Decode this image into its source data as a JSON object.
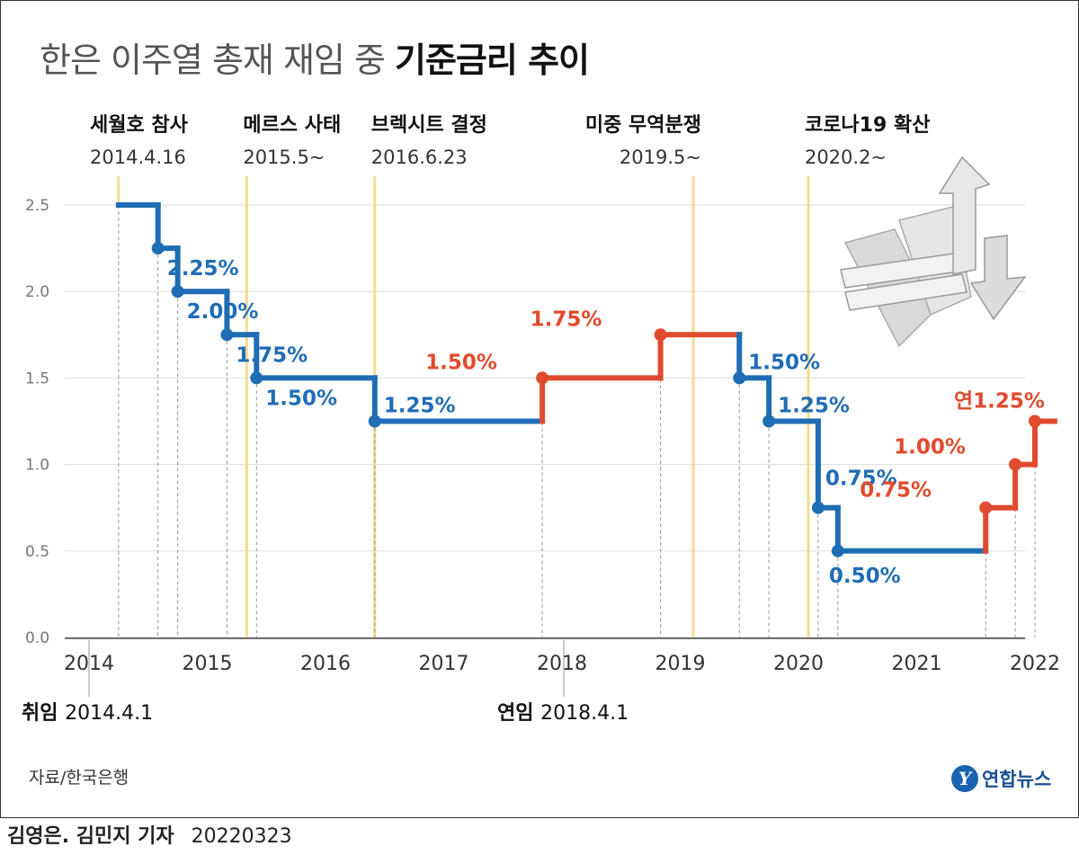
{
  "title": {
    "light": "한은 이주열 총재 재임 중",
    "bold": "기준금리 추이"
  },
  "source": "자료/한국은행",
  "credit": {
    "names": "김영은. 김민지 기자",
    "date": "20220323"
  },
  "logo": {
    "mark": "Y",
    "text": "연합뉴스"
  },
  "colors": {
    "cut": "#1f6db5",
    "hike": "#e04b2d",
    "event": "#f5dc8c",
    "grid": "#cccccc"
  },
  "chart_data": {
    "type": "line",
    "step": true,
    "ylim": [
      0,
      2.6
    ],
    "xlim": [
      2014,
      2022.12
    ],
    "yticks": [
      "0.0",
      "0.5",
      "1.0",
      "1.5",
      "2.0",
      "2.5"
    ],
    "xticks": [
      "2014",
      "2015",
      "2016",
      "2017",
      "2018",
      "2019",
      "2020",
      "2021",
      "2022"
    ],
    "series": [
      {
        "points": [
          {
            "x": "2014.04",
            "y": 2.5
          },
          {
            "x": "2014.08",
            "y": 2.25,
            "label": "2.25%",
            "dir": "cut"
          },
          {
            "x": "2014.10",
            "y": 2.0,
            "label": "2.00%",
            "dir": "cut"
          },
          {
            "x": "2015.03",
            "y": 1.75,
            "label": "1.75%",
            "dir": "cut"
          },
          {
            "x": "2015.06",
            "y": 1.5,
            "label": "1.50%",
            "dir": "cut"
          },
          {
            "x": "2016.06",
            "y": 1.25,
            "label": "1.25%",
            "dir": "cut"
          },
          {
            "x": "2017.11",
            "y": 1.5,
            "label": "1.50%",
            "dir": "hike"
          },
          {
            "x": "2018.11",
            "y": 1.75,
            "label": "1.75%",
            "dir": "hike"
          },
          {
            "x": "2019.07",
            "y": 1.5,
            "label": "1.50%",
            "dir": "cut"
          },
          {
            "x": "2019.10",
            "y": 1.25,
            "label": "1.25%",
            "dir": "cut"
          },
          {
            "x": "2020.03",
            "y": 0.75,
            "label": "0.75%",
            "dir": "cut"
          },
          {
            "x": "2020.05",
            "y": 0.5,
            "label": "0.50%",
            "dir": "cut"
          },
          {
            "x": "2021.08",
            "y": 0.75,
            "label": "0.75%",
            "dir": "hike"
          },
          {
            "x": "2021.11",
            "y": 1.0,
            "label": "1.00%",
            "dir": "hike"
          },
          {
            "x": "2022.01",
            "y": 1.25,
            "label": "연1.25%",
            "dir": "hike"
          }
        ],
        "end_x": "2022.03"
      }
    ],
    "events": [
      {
        "name": "세월호 참사",
        "date": "2014.4.16",
        "x": "2014.04"
      },
      {
        "name": "메르스 사태",
        "date": "2015.5~",
        "x": "2015.05"
      },
      {
        "name": "브렉시트 결정",
        "date": "2016.6.23",
        "x": "2016.06"
      },
      {
        "name": "미중 무역분쟁",
        "date": "2019.5~",
        "x": "2019.05"
      },
      {
        "name": "코로나19 확산",
        "date": "2020.2~",
        "x": "2020.02"
      }
    ],
    "tenure": [
      {
        "label": "취임",
        "date": "2014.4.1",
        "x": "2014.04"
      },
      {
        "label": "연임",
        "date": "2018.4.1",
        "x": "2018.04"
      }
    ]
  }
}
